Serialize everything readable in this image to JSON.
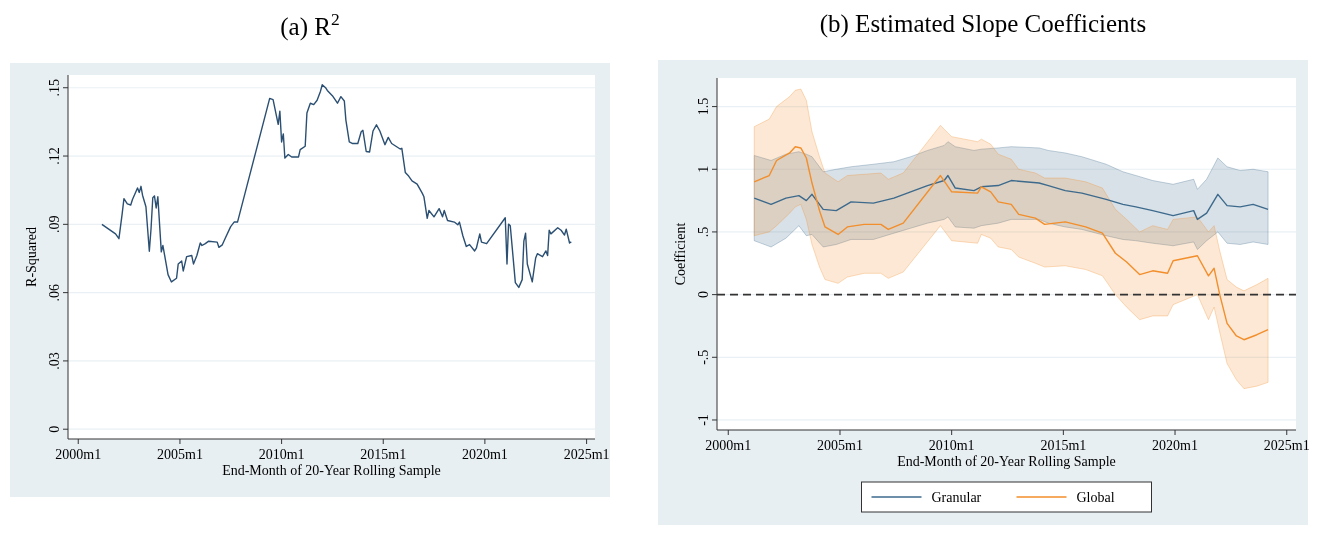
{
  "chart_data": [
    {
      "type": "line",
      "title": "(a) R$^{2}$",
      "xlabel": "End-Month of 20-Year Rolling Sample",
      "ylabel": "R-Squared",
      "x": [
        "2001-03",
        "2001-11",
        "2002-01",
        "2002-03",
        "2002-04",
        "2002-06",
        "2002-08",
        "2002-09",
        "2002-12",
        "2003-01",
        "2003-02",
        "2003-03",
        "2003-05",
        "2003-07",
        "2003-08",
        "2003-09",
        "2003-10",
        "2003-11",
        "2003-12",
        "2004-02",
        "2004-03",
        "2004-06",
        "2004-08",
        "2004-11",
        "2004-12",
        "2005-02",
        "2005-03",
        "2005-05",
        "2005-08",
        "2005-09",
        "2005-11",
        "2006-01",
        "2006-02",
        "2006-04",
        "2006-06",
        "2006-11",
        "2006-12",
        "2007-02",
        "2007-04",
        "2007-07",
        "2007-09",
        "2007-11",
        "2009-06",
        "2009-08",
        "2009-11",
        "2009-12",
        "2010-01",
        "2010-02",
        "2010-03",
        "2010-05",
        "2010-07",
        "2010-11",
        "2010-12",
        "2011-03",
        "2011-04",
        "2011-06",
        "2011-08",
        "2011-10",
        "2011-12",
        "2012-01",
        "2012-03",
        "2012-04",
        "2012-07",
        "2012-10",
        "2012-12",
        "2013-02",
        "2013-03",
        "2013-05",
        "2013-07",
        "2013-10",
        "2013-12",
        "2014-01",
        "2014-03",
        "2014-05",
        "2014-07",
        "2014-09",
        "2014-11",
        "2015-02",
        "2015-04",
        "2015-06",
        "2015-11",
        "2015-12",
        "2016-02",
        "2016-04",
        "2016-06",
        "2016-09",
        "2016-12",
        "2017-01",
        "2017-03",
        "2017-04",
        "2017-07",
        "2017-10",
        "2017-12",
        "2018-01",
        "2018-03",
        "2018-07",
        "2018-09",
        "2018-10",
        "2018-12",
        "2019-02",
        "2019-04",
        "2019-07",
        "2019-08",
        "2019-10",
        "2019-11",
        "2020-02",
        "2021-01",
        "2021-02",
        "2021-03",
        "2021-04",
        "2021-07",
        "2021-09",
        "2021-11",
        "2021-12",
        "2022-01",
        "2022-02",
        "2022-05",
        "2022-07",
        "2022-08",
        "2022-11",
        "2023-01",
        "2023-02",
        "2023-03",
        "2023-04",
        "2023-08",
        "2023-10",
        "2023-12",
        "2024-01",
        "2024-03",
        "2024-04"
      ],
      "series": [
        {
          "color": "#2b4f72",
          "values": [
            0.09,
            0.0858,
            0.0837,
            0.0948,
            0.1013,
            0.099,
            0.0985,
            0.1009,
            0.106,
            0.104,
            0.1067,
            0.1028,
            0.0977,
            0.0782,
            0.0882,
            0.1017,
            0.1025,
            0.0972,
            0.1021,
            0.0779,
            0.0807,
            0.0679,
            0.0647,
            0.0663,
            0.0726,
            0.0739,
            0.0695,
            0.0758,
            0.0763,
            0.0726,
            0.0763,
            0.0818,
            0.0807,
            0.0815,
            0.0826,
            0.0822,
            0.0799,
            0.081,
            0.0842,
            0.089,
            0.091,
            0.091,
            0.1453,
            0.1448,
            0.1339,
            0.1397,
            0.1262,
            0.1297,
            0.1191,
            0.1207,
            0.1196,
            0.1196,
            0.1228,
            0.1243,
            0.1389,
            0.1432,
            0.1426,
            0.1445,
            0.1485,
            0.1513,
            0.15,
            0.1488,
            0.1465,
            0.1432,
            0.1461,
            0.1442,
            0.1358,
            0.1262,
            0.1255,
            0.1255,
            0.1307,
            0.1313,
            0.122,
            0.1218,
            0.131,
            0.1337,
            0.131,
            0.125,
            0.1282,
            0.1255,
            0.1231,
            0.1234,
            0.1128,
            0.1112,
            0.1091,
            0.1077,
            0.1037,
            0.1021,
            0.0926,
            0.0961,
            0.0933,
            0.0969,
            0.0933,
            0.0961,
            0.0917,
            0.091,
            0.0898,
            0.091,
            0.085,
            0.0803,
            0.0811,
            0.0783,
            0.0795,
            0.0858,
            0.0822,
            0.0815,
            0.0929,
            0.0726,
            0.0901,
            0.0894,
            0.0644,
            0.0623,
            0.0657,
            0.0826,
            0.0861,
            0.0726,
            0.0647,
            0.0752,
            0.0771,
            0.0758,
            0.0783,
            0.0763,
            0.0874,
            0.0858,
            0.0885,
            0.0874,
            0.0853,
            0.0879,
            0.0818,
            0.0823
          ]
        }
      ],
      "xlim": [
        "1999-07",
        "2025-06"
      ],
      "ylim": [
        -0.0043,
        0.1556
      ],
      "xticks": [
        {
          "value": "2000-01",
          "label": "2000m1"
        },
        {
          "value": "2005-01",
          "label": "2005m1"
        },
        {
          "value": "2010-01",
          "label": "2010m1"
        },
        {
          "value": "2015-01",
          "label": "2015m1"
        },
        {
          "value": "2020-01",
          "label": "2020m1"
        },
        {
          "value": "2025-01",
          "label": "2025m1"
        }
      ],
      "yticks": [
        {
          "value": 0,
          "label": "0"
        },
        {
          "value": 0.03,
          "label": ".03"
        },
        {
          "value": 0.06,
          "label": ".06"
        },
        {
          "value": 0.09,
          "label": ".09"
        },
        {
          "value": 0.12,
          "label": ".12"
        },
        {
          "value": 0.15,
          "label": ".15"
        }
      ],
      "grid": "y",
      "legend": false
    },
    {
      "type": "line",
      "title": "(b) Estimated Slope Coefficients",
      "xlabel": "End-Month of 20-Year Rolling Sample",
      "ylabel": "Coefficient",
      "series": [
        {
          "name": "Granular",
          "color": "#3d6a8c",
          "x": [
            "2001-03",
            "2001-12",
            "2002-08",
            "2003-03",
            "2003-07",
            "2003-10",
            "2004-04",
            "2004-11",
            "2005-07",
            "2006-07",
            "2007-06",
            "2008-03",
            "2008-12",
            "2009-09",
            "2009-11",
            "2010-03",
            "2011-01",
            "2011-05",
            "2012-02",
            "2012-09",
            "2013-12",
            "2014-05",
            "2015-02",
            "2015-11",
            "2016-12",
            "2017-09",
            "2018-04",
            "2019-01",
            "2019-12",
            "2020-11",
            "2021-01",
            "2021-06",
            "2021-12",
            "2022-05",
            "2022-12",
            "2023-07",
            "2024-03"
          ],
          "values": [
            0.77,
            0.72,
            0.77,
            0.79,
            0.75,
            0.8,
            0.68,
            0.67,
            0.74,
            0.73,
            0.77,
            0.82,
            0.87,
            0.91,
            0.95,
            0.85,
            0.83,
            0.86,
            0.87,
            0.91,
            0.89,
            0.87,
            0.83,
            0.81,
            0.76,
            0.72,
            0.7,
            0.67,
            0.63,
            0.67,
            0.6,
            0.65,
            0.8,
            0.71,
            0.7,
            0.72,
            0.68
          ],
          "lower": [
            0.43,
            0.38,
            0.45,
            0.55,
            0.47,
            0.48,
            0.38,
            0.4,
            0.44,
            0.44,
            0.49,
            0.53,
            0.57,
            0.6,
            0.62,
            0.54,
            0.53,
            0.55,
            0.57,
            0.6,
            0.6,
            0.57,
            0.54,
            0.52,
            0.47,
            0.44,
            0.43,
            0.41,
            0.39,
            0.42,
            0.36,
            0.43,
            0.5,
            0.41,
            0.4,
            0.42,
            0.4
          ],
          "upper": [
            1.11,
            1.07,
            1.12,
            1.14,
            1.12,
            1.1,
            0.98,
            1.0,
            1.02,
            1.04,
            1.06,
            1.1,
            1.15,
            1.19,
            1.22,
            1.18,
            1.15,
            1.16,
            1.17,
            1.18,
            1.17,
            1.15,
            1.13,
            1.1,
            1.04,
            0.98,
            0.95,
            0.91,
            0.88,
            0.92,
            0.84,
            0.92,
            1.09,
            1.02,
            0.99,
            1.0,
            0.98
          ]
        },
        {
          "name": "Global",
          "color": "#f28e2b",
          "x": [
            "2001-03",
            "2001-11",
            "2002-03",
            "2002-10",
            "2003-01",
            "2003-04",
            "2003-07",
            "2003-10",
            "2004-02",
            "2004-05",
            "2004-12",
            "2005-05",
            "2006-02",
            "2006-11",
            "2007-03",
            "2007-11",
            "2009-07",
            "2010-01",
            "2011-03",
            "2011-05",
            "2011-10",
            "2012-02",
            "2012-09",
            "2013-01",
            "2013-10",
            "2014-03",
            "2015-02",
            "2016-01",
            "2016-10",
            "2017-05",
            "2017-11",
            "2018-06",
            "2019-01",
            "2019-09",
            "2019-12",
            "2021-01",
            "2021-07",
            "2021-10",
            "2022-01",
            "2022-05",
            "2022-10",
            "2023-02",
            "2023-09",
            "2024-03"
          ],
          "values": [
            0.9,
            0.95,
            1.07,
            1.13,
            1.18,
            1.17,
            1.09,
            0.89,
            0.67,
            0.54,
            0.48,
            0.54,
            0.56,
            0.56,
            0.52,
            0.57,
            0.95,
            0.82,
            0.81,
            0.86,
            0.82,
            0.74,
            0.72,
            0.64,
            0.61,
            0.56,
            0.58,
            0.54,
            0.49,
            0.33,
            0.26,
            0.16,
            0.19,
            0.17,
            0.27,
            0.31,
            0.15,
            0.21,
            0.0,
            -0.23,
            -0.33,
            -0.36,
            -0.32,
            -0.28
          ],
          "lower": [
            0.47,
            0.5,
            0.55,
            0.65,
            0.7,
            0.72,
            0.6,
            0.4,
            0.22,
            0.12,
            0.09,
            0.14,
            0.17,
            0.17,
            0.13,
            0.18,
            0.55,
            0.43,
            0.41,
            0.48,
            0.45,
            0.38,
            0.36,
            0.3,
            0.25,
            0.22,
            0.23,
            0.2,
            0.15,
            0.0,
            -0.1,
            -0.2,
            -0.17,
            -0.17,
            -0.08,
            0.0,
            -0.2,
            -0.1,
            -0.3,
            -0.55,
            -0.68,
            -0.75,
            -0.73,
            -0.7
          ],
          "upper": [
            1.34,
            1.4,
            1.5,
            1.58,
            1.63,
            1.64,
            1.55,
            1.3,
            1.1,
            0.97,
            0.9,
            0.95,
            0.96,
            0.97,
            0.92,
            0.97,
            1.35,
            1.26,
            1.22,
            1.24,
            1.2,
            1.12,
            1.08,
            1.0,
            0.97,
            0.93,
            0.93,
            0.9,
            0.85,
            0.68,
            0.6,
            0.5,
            0.55,
            0.52,
            0.6,
            0.62,
            0.5,
            0.55,
            0.35,
            0.12,
            0.06,
            0.03,
            0.08,
            0.13
          ]
        }
      ],
      "xlim": [
        "1999-07",
        "2025-06"
      ],
      "ylim": [
        -1.08,
        1.728
      ],
      "xticks": [
        {
          "value": "2000-01",
          "label": "2000m1"
        },
        {
          "value": "2005-01",
          "label": "2005m1"
        },
        {
          "value": "2010-01",
          "label": "2010m1"
        },
        {
          "value": "2015-01",
          "label": "2015m1"
        },
        {
          "value": "2020-01",
          "label": "2020m1"
        },
        {
          "value": "2025-01",
          "label": "2025m1"
        }
      ],
      "yticks": [
        {
          "value": -1,
          "label": "-1"
        },
        {
          "value": -0.5,
          "label": "-.5"
        },
        {
          "value": 0,
          "label": "0"
        },
        {
          "value": 0.5,
          "label": ".5"
        },
        {
          "value": 1,
          "label": "1"
        },
        {
          "value": 1.5,
          "label": "1.5"
        }
      ],
      "ref_lines": [
        {
          "axis": "y",
          "value": 0,
          "color": "#333333",
          "line_style": "dashed"
        }
      ],
      "grid": "y",
      "legend": "bottom"
    }
  ]
}
